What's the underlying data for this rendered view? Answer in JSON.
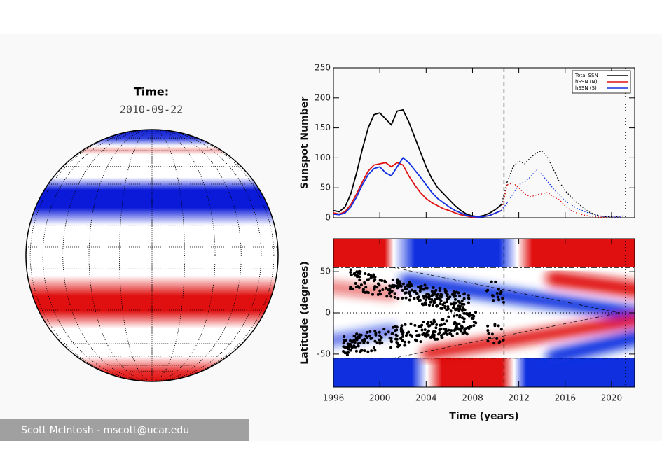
{
  "header": {
    "time_label": "Time:",
    "date": "2010-09-22"
  },
  "credit": "Scott McIntosh - mscott@ucar.edu",
  "chart_data": [
    {
      "type": "line",
      "y_label": "Sunspot Number",
      "x": [
        1996,
        1996.5,
        1997,
        1997.5,
        1998,
        1998.5,
        1999,
        1999.5,
        2000,
        2000.5,
        2001,
        2001.5,
        2002,
        2002.5,
        2003,
        2003.5,
        2004,
        2004.5,
        2005,
        2005.5,
        2006,
        2006.5,
        2007,
        2007.5,
        2008,
        2008.5,
        2009,
        2009.5,
        2010,
        2010.5,
        2011,
        2011.5,
        2012,
        2012.5,
        2013,
        2013.5,
        2014,
        2014.5,
        2015,
        2015.5,
        2016,
        2016.5,
        2017,
        2017.5,
        2018,
        2018.5,
        2019,
        2019.5,
        2020,
        2020.5,
        2021
      ],
      "xlim": [
        1996,
        2022
      ],
      "ylim": [
        0,
        250
      ],
      "yticks": [
        0,
        50,
        100,
        150,
        200,
        250
      ],
      "vlines": [
        2010.72,
        2021.2
      ],
      "legend": "upper right",
      "series": [
        {
          "name": "Total SSN",
          "color": "#000000",
          "values": [
            12,
            10,
            18,
            40,
            75,
            115,
            150,
            172,
            175,
            165,
            155,
            178,
            180,
            160,
            135,
            110,
            85,
            65,
            50,
            40,
            30,
            20,
            12,
            6,
            3,
            2,
            4,
            8,
            14,
            22,
            60,
            85,
            95,
            90,
            100,
            108,
            112,
            100,
            80,
            60,
            45,
            35,
            25,
            18,
            10,
            6,
            3,
            2,
            2,
            2,
            3
          ]
        },
        {
          "name": "hSSN (N)",
          "color": "#e01010",
          "values": [
            8,
            6,
            10,
            22,
            40,
            60,
            78,
            88,
            90,
            92,
            85,
            92,
            88,
            70,
            55,
            42,
            32,
            25,
            20,
            15,
            12,
            8,
            5,
            3,
            1,
            1,
            2,
            4,
            8,
            12,
            55,
            58,
            50,
            40,
            35,
            38,
            40,
            42,
            35,
            30,
            20,
            12,
            8,
            5,
            3,
            2,
            1,
            1,
            1,
            1,
            1
          ]
        },
        {
          "name": "hSSN (S)",
          "color": "#1030e0",
          "values": [
            6,
            5,
            8,
            18,
            35,
            55,
            72,
            82,
            85,
            75,
            70,
            85,
            100,
            92,
            80,
            68,
            55,
            42,
            32,
            25,
            18,
            12,
            8,
            4,
            2,
            1,
            2,
            4,
            8,
            12,
            25,
            40,
            55,
            60,
            68,
            80,
            72,
            60,
            48,
            38,
            28,
            22,
            16,
            12,
            8,
            5,
            3,
            2,
            1,
            1,
            1
          ]
        }
      ]
    },
    {
      "type": "band_map",
      "y_label": "Latitude (degrees)",
      "x_label": "Time (years)",
      "xlim": [
        1996,
        2022
      ],
      "ylim": [
        -90,
        90
      ],
      "xticks": [
        1996,
        2000,
        2004,
        2008,
        2012,
        2016,
        2020
      ],
      "yticks": [
        -50,
        0,
        50
      ],
      "hlines": [
        55,
        0,
        -55
      ],
      "vlines": [
        2010.72,
        2021.2
      ]
    }
  ]
}
